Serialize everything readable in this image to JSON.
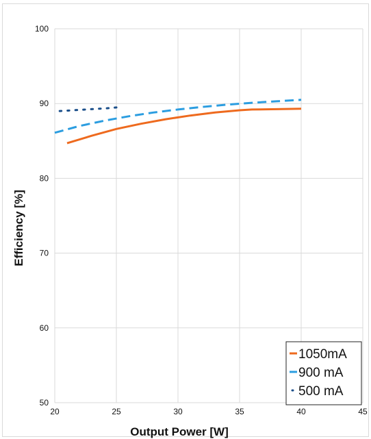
{
  "chart_data": {
    "type": "line",
    "xlabel": "Output Power [W]",
    "ylabel": "Efficiency [%]",
    "xlim": [
      20,
      45
    ],
    "ylim": [
      50,
      100
    ],
    "xticks": [
      "20",
      "25",
      "30",
      "35",
      "40",
      "45"
    ],
    "yticks": [
      "50",
      "60",
      "70",
      "80",
      "90",
      "100"
    ],
    "grid": true,
    "legend_position": "bottom-right",
    "series": [
      {
        "name": "1050mA",
        "color": "#ee6a1e",
        "style": "solid",
        "x": [
          21,
          23,
          25,
          27,
          29,
          31,
          33,
          35,
          36,
          38,
          40
        ],
        "y": [
          84.7,
          85.7,
          86.6,
          87.3,
          87.9,
          88.4,
          88.8,
          89.1,
          89.2,
          89.25,
          89.3
        ]
      },
      {
        "name": "900 mA",
        "color": "#2b9de0",
        "style": "dashed",
        "x": [
          20,
          22,
          24,
          26,
          28,
          30,
          32,
          34,
          36,
          38,
          40
        ],
        "y": [
          86.1,
          87.0,
          87.7,
          88.3,
          88.8,
          89.2,
          89.55,
          89.85,
          90.1,
          90.3,
          90.5
        ]
      },
      {
        "name": "500 mA",
        "color": "#1b4f8a",
        "style": "dotted",
        "x": [
          20.4,
          21.5,
          22.5,
          23.5,
          24.5,
          25.1
        ],
        "y": [
          89.0,
          89.1,
          89.2,
          89.3,
          89.4,
          89.5
        ]
      }
    ]
  }
}
